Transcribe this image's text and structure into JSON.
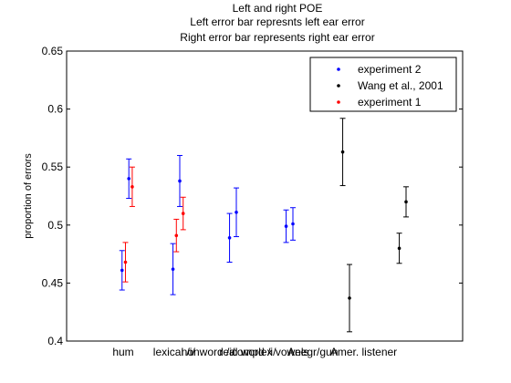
{
  "chart_data": {
    "type": "scatter",
    "title_lines": [
      "Left and right POE",
      "Left error bar represnts left ear error",
      "Right error bar represents right ear error"
    ],
    "xlabel": "",
    "ylabel": "proportion of errors",
    "ylim": [
      0.4,
      0.65
    ],
    "xlim": [
      0,
      7
    ],
    "yticks": [
      0.4,
      0.45,
      0.5,
      0.55,
      0.6,
      0.65
    ],
    "ytick_labels": [
      "0.4",
      "0.45",
      "0.5",
      "0.55",
      "0.6",
      "0.65"
    ],
    "categories": [
      "hum",
      "lexical /i/",
      "nonword /i/",
      "real word /i/",
      "complex vowels",
      "Anegr/gun",
      "Amer. listener"
    ],
    "category_x": [
      1,
      1.9,
      2.5,
      3.2,
      3.6,
      4.35,
      5.25
    ],
    "grid": false,
    "legend_position": "top-right",
    "series": [
      {
        "name": "experiment 2",
        "color": "#0000ff",
        "points": [
          {
            "x": 0.98,
            "y": 0.461,
            "err": 0.017
          },
          {
            "x": 1.1,
            "y": 0.54,
            "err": 0.017
          },
          {
            "x": 1.88,
            "y": 0.462,
            "err": 0.022
          },
          {
            "x": 2.0,
            "y": 0.538,
            "err": 0.022
          },
          {
            "x": 2.88,
            "y": 0.489,
            "err": 0.021
          },
          {
            "x": 3.0,
            "y": 0.511,
            "err": 0.021
          },
          {
            "x": 3.88,
            "y": 0.499,
            "err": 0.014
          },
          {
            "x": 4.0,
            "y": 0.501,
            "err": 0.014
          }
        ]
      },
      {
        "name": "Wang et al., 2001",
        "color": "#000000",
        "points": [
          {
            "x": 4.88,
            "y": 0.563,
            "err": 0.029
          },
          {
            "x": 5.0,
            "y": 0.437,
            "err": 0.029
          },
          {
            "x": 5.88,
            "y": 0.48,
            "err": 0.013
          },
          {
            "x": 6.0,
            "y": 0.52,
            "err": 0.013
          }
        ]
      },
      {
        "name": "experiment 1",
        "color": "#ff0000",
        "points": [
          {
            "x": 1.04,
            "y": 0.468,
            "err": 0.017
          },
          {
            "x": 1.16,
            "y": 0.533,
            "err": 0.017
          },
          {
            "x": 1.94,
            "y": 0.491,
            "err": 0.014
          },
          {
            "x": 2.06,
            "y": 0.51,
            "err": 0.014
          }
        ]
      }
    ]
  }
}
